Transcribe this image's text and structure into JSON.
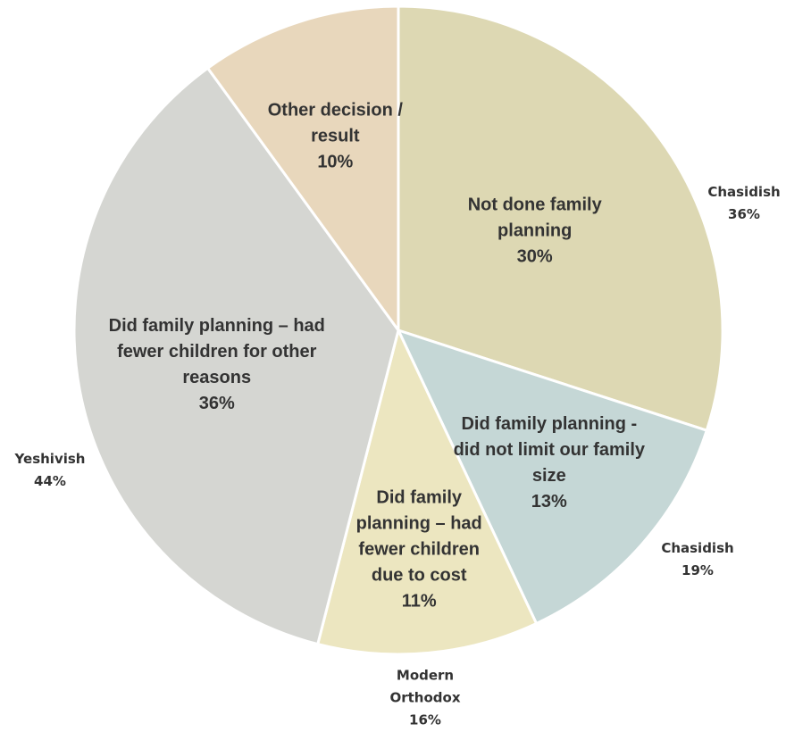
{
  "chart_data": {
    "type": "pie",
    "slices": [
      {
        "name": "Not done family planning",
        "label_lines": [
          "Not done family",
          "planning"
        ],
        "value": 30,
        "value_label": "30%",
        "color": "#ddd8b3"
      },
      {
        "name": "Did family planning - did not limit our family size",
        "label_lines": [
          "Did family planning -",
          "did not limit our family",
          "size"
        ],
        "value": 13,
        "value_label": "13%",
        "color": "#c5d7d6"
      },
      {
        "name": "Did family planning – had fewer children due to cost",
        "label_lines": [
          "Did family",
          "planning – had",
          "fewer children",
          "due to cost"
        ],
        "value": 11,
        "value_label": "11%",
        "color": "#ece6c0"
      },
      {
        "name": "Did family planning – had fewer children for other reasons",
        "label_lines": [
          "Did family planning – had",
          "fewer children for other",
          "reasons"
        ],
        "value": 36,
        "value_label": "36%",
        "color": "#d5d6d2"
      },
      {
        "name": "Other decision / result",
        "label_lines": [
          "Other decision /",
          "result"
        ],
        "value": 10,
        "value_label": "10%",
        "color": "#e8d7bc"
      }
    ],
    "outer_labels": [
      {
        "lines": [
          "Chasidish",
          "36%"
        ]
      },
      {
        "lines": [
          "Chasidish",
          "19%"
        ]
      },
      {
        "lines": [
          "Modern",
          "Orthodox",
          "16%"
        ]
      },
      {
        "lines": [
          "Yeshivish",
          "44%"
        ]
      }
    ],
    "start": "12 o'clock",
    "direction": "clockwise",
    "legend": "none"
  }
}
